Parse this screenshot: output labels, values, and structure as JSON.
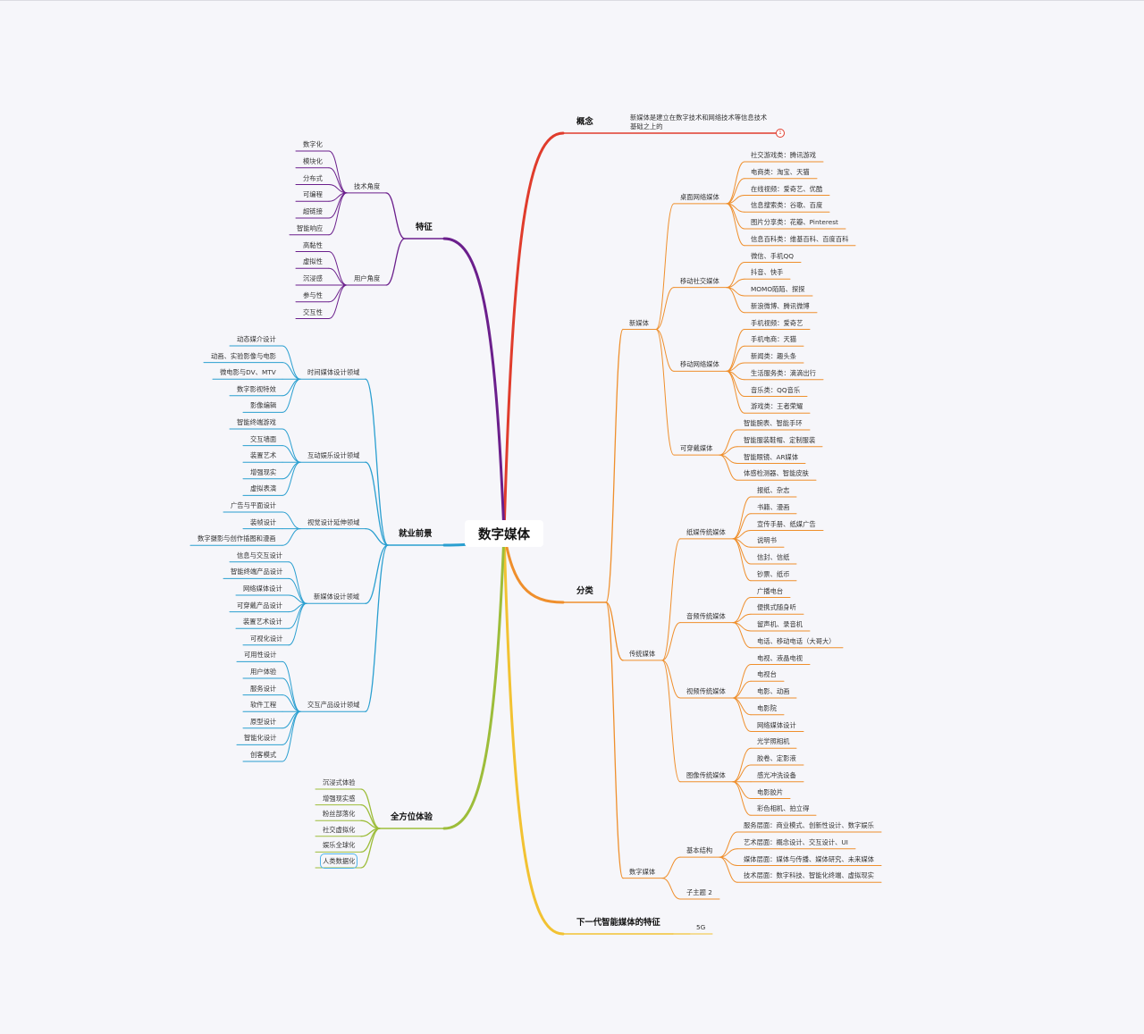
{
  "root": {
    "label": "数字媒体"
  },
  "colors": {
    "concept": "#e03c2c",
    "classification": "#ef8f2c",
    "next_gen": "#f2c232",
    "experience": "#9dbd3a",
    "career": "#2a9fd0",
    "features": "#6b1f8c",
    "background": "#f6f6fa",
    "selection": "#4fb3ea"
  },
  "branches": [
    {
      "label": "概念",
      "side": "right",
      "color": "#e03c2c",
      "children": [
        {
          "label": "新媒体是建立在数字技术和网络技术等信息技术基础之上的",
          "badge": "1"
        }
      ]
    },
    {
      "label": "分类",
      "side": "right",
      "color": "#ef8f2c",
      "children": [
        {
          "label": "新媒体",
          "children": [
            {
              "label": "桌面网络媒体",
              "children": [
                {
                  "label": "社交游戏类：腾讯游戏"
                },
                {
                  "label": "电商类：淘宝、天猫"
                },
                {
                  "label": "在线视频：爱奇艺、优酷"
                },
                {
                  "label": "信息搜索类：谷歌、百度"
                },
                {
                  "label": "图片分享类：花瓣、Pinterest"
                },
                {
                  "label": "信息百科类：维基百科、百度百科"
                }
              ]
            },
            {
              "label": "移动社交媒体",
              "children": [
                {
                  "label": "微信、手机QQ"
                },
                {
                  "label": "抖音、快手"
                },
                {
                  "label": "MOMO陌陌、探探"
                },
                {
                  "label": "新浪微博、腾讯微博"
                }
              ]
            },
            {
              "label": "移动网络媒体",
              "children": [
                {
                  "label": "手机视频：爱奇艺"
                },
                {
                  "label": "手机电商：天猫"
                },
                {
                  "label": "新闻类：趣头条"
                },
                {
                  "label": "生活服务类：滴滴出行"
                },
                {
                  "label": "音乐类：QQ音乐"
                },
                {
                  "label": "游戏类：王者荣耀"
                }
              ]
            },
            {
              "label": "可穿戴媒体",
              "children": [
                {
                  "label": "智能腕表、智能手环"
                },
                {
                  "label": "智能服装鞋帽、定制服装"
                },
                {
                  "label": "智能眼镜、AR媒体"
                },
                {
                  "label": "体感检测器、智能皮肤"
                }
              ]
            }
          ]
        },
        {
          "label": "传统媒体",
          "children": [
            {
              "label": "纸媒传统媒体",
              "children": [
                {
                  "label": "报纸、杂志"
                },
                {
                  "label": "书籍、漫画"
                },
                {
                  "label": "宣传手册、纸媒广告"
                },
                {
                  "label": "说明书"
                },
                {
                  "label": "信封、信纸"
                },
                {
                  "label": "钞票、纸币"
                }
              ]
            },
            {
              "label": "音频传统媒体",
              "children": [
                {
                  "label": "广播电台"
                },
                {
                  "label": "便携式随身听"
                },
                {
                  "label": "留声机、录音机"
                },
                {
                  "label": "电话、移动电话（大哥大）"
                }
              ]
            },
            {
              "label": "视频传统媒体",
              "children": [
                {
                  "label": "电视、液晶电视"
                },
                {
                  "label": "电视台"
                },
                {
                  "label": "电影、动画"
                },
                {
                  "label": "电影院"
                },
                {
                  "label": "网络媒体设计"
                }
              ]
            },
            {
              "label": "图像传统媒体",
              "children": [
                {
                  "label": "光学照相机"
                },
                {
                  "label": "胶卷、定影液"
                },
                {
                  "label": "感光冲洗设备"
                },
                {
                  "label": "电影胶片"
                },
                {
                  "label": "彩色相机、拍立得"
                }
              ]
            }
          ]
        },
        {
          "label": "数字媒体",
          "children": [
            {
              "label": "基本结构",
              "children": [
                {
                  "label": "服务层面：商业模式、创新性设计、数字娱乐"
                },
                {
                  "label": "艺术层面：概念设计、交互设计、UI"
                },
                {
                  "label": "媒体层面：媒体与传播、媒体研究、未来媒体"
                },
                {
                  "label": "技术层面：数字科技、智能化终端、虚拟现实"
                }
              ]
            },
            {
              "label": "子主题 2"
            }
          ]
        }
      ]
    },
    {
      "label": "下一代智能媒体的特征",
      "side": "right",
      "color": "#f2c232",
      "children": [
        {
          "label": "5G"
        }
      ]
    },
    {
      "label": "特征",
      "side": "left",
      "color": "#6b1f8c",
      "children": [
        {
          "label": "技术角度",
          "children": [
            {
              "label": "数字化"
            },
            {
              "label": "模块化"
            },
            {
              "label": "分布式"
            },
            {
              "label": "可编程"
            },
            {
              "label": "超链接"
            },
            {
              "label": "智能响应"
            }
          ]
        },
        {
          "label": "用户角度",
          "children": [
            {
              "label": "高黏性"
            },
            {
              "label": "虚拟性"
            },
            {
              "label": "沉浸感"
            },
            {
              "label": "参与性"
            },
            {
              "label": "交互性"
            }
          ]
        }
      ]
    },
    {
      "label": "就业前景",
      "side": "left",
      "color": "#2a9fd0",
      "children": [
        {
          "label": "时间媒体设计领域",
          "children": [
            {
              "label": "动态媒介设计"
            },
            {
              "label": "动画、实验影像与电影"
            },
            {
              "label": "微电影与DV、MTV"
            },
            {
              "label": "数字影视特效"
            },
            {
              "label": "影像编辑"
            }
          ]
        },
        {
          "label": "互动娱乐设计领域",
          "children": [
            {
              "label": "智能终端游戏"
            },
            {
              "label": "交互墙面"
            },
            {
              "label": "装置艺术"
            },
            {
              "label": "增强现实"
            },
            {
              "label": "虚拟表演"
            }
          ]
        },
        {
          "label": "视觉设计延伸领域",
          "children": [
            {
              "label": "广告与平面设计"
            },
            {
              "label": "装帧设计"
            },
            {
              "label": "数字摄影与创作插图和漫画"
            }
          ]
        },
        {
          "label": "新媒体设计领域",
          "children": [
            {
              "label": "信息与交互设计"
            },
            {
              "label": "智能终端产品设计"
            },
            {
              "label": "网络媒体设计"
            },
            {
              "label": "可穿戴产品设计"
            },
            {
              "label": "装置艺术设计"
            },
            {
              "label": "可视化设计"
            }
          ]
        },
        {
          "label": "交互产品设计领域",
          "children": [
            {
              "label": "可用性设计"
            },
            {
              "label": "用户体验"
            },
            {
              "label": "服务设计"
            },
            {
              "label": "软件工程"
            },
            {
              "label": "原型设计"
            },
            {
              "label": "智能化设计"
            },
            {
              "label": "创客模式"
            }
          ]
        }
      ]
    },
    {
      "label": "全方位体验",
      "side": "left",
      "color": "#9dbd3a",
      "children": [
        {
          "label": "沉浸式体验"
        },
        {
          "label": "增强现实感"
        },
        {
          "label": "粉丝部落化"
        },
        {
          "label": "社交虚拟化"
        },
        {
          "label": "娱乐全球化"
        },
        {
          "label": "人类数据化",
          "selected": true
        }
      ]
    }
  ]
}
